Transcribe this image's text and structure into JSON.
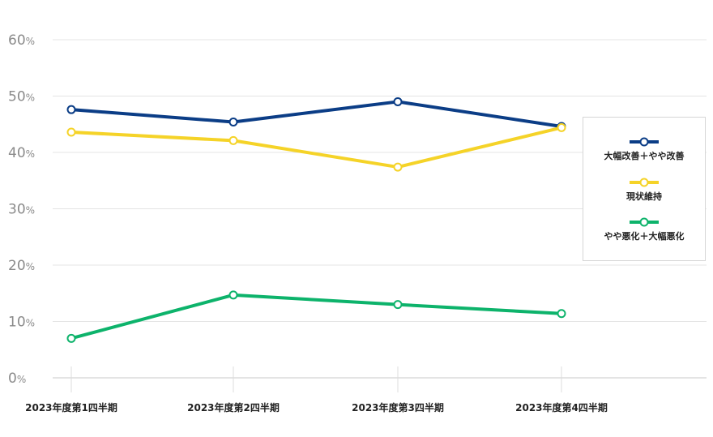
{
  "chart_data": {
    "type": "line",
    "categories": [
      "2023年度第1四半期",
      "2023年度第2四半期",
      "2023年度第3四半期",
      "2023年度第4四半期"
    ],
    "ylim": [
      0,
      60
    ],
    "yticks": [
      0,
      10,
      20,
      30,
      40,
      50,
      60
    ],
    "y_unit": "%",
    "grid": true,
    "legend_position": "right",
    "series": [
      {
        "name": "大幅改善＋やや改善",
        "color": "#0b3d86",
        "values": [
          47.6,
          45.4,
          49.0,
          44.6
        ]
      },
      {
        "name": "現状維持",
        "color": "#f5d328",
        "values": [
          43.6,
          42.1,
          37.4,
          44.4
        ]
      },
      {
        "name": "やや悪化＋大幅悪化",
        "color": "#0db36b",
        "values": [
          7.0,
          14.7,
          13.0,
          11.4
        ]
      }
    ]
  }
}
